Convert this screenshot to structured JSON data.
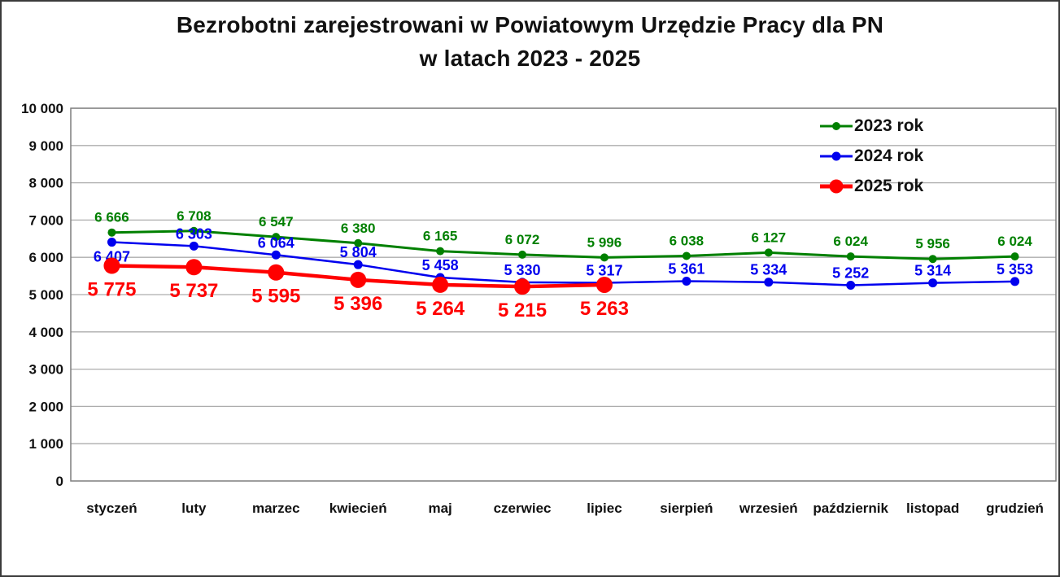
{
  "title": {
    "line1": "Bezrobotni zarejestrowani w Powiatowym Urzędzie Pracy dla PN",
    "line2": "w latach 2023 - 2025"
  },
  "legend": [
    {
      "label": "2023 rok",
      "color": "#008000",
      "line_width": 3,
      "dot_size": 10
    },
    {
      "label": "2024 rok",
      "color": "#0000EE",
      "line_width": 3,
      "dot_size": 11
    },
    {
      "label": "2025 rok",
      "color": "#FF0000",
      "line_width": 5,
      "dot_size": 17
    }
  ],
  "chart_data": {
    "type": "line",
    "title": "Bezrobotni zarejestrowani w Powiatowym Urzędzie Pracy dla PN w latach 2023 - 2025",
    "categories": [
      "styczeń",
      "luty",
      "marzec",
      "kwiecień",
      "maj",
      "czerwiec",
      "lipiec",
      "sierpień",
      "wrzesień",
      "październik",
      "listopad",
      "grudzień"
    ],
    "series": [
      {
        "name": "2023 rok",
        "color": "#008000",
        "line_width": 3,
        "marker_radius": 5,
        "label_font_size": 17,
        "label_dy": -13,
        "label_dy_overrides": {},
        "values": [
          6666,
          6708,
          6547,
          6380,
          6165,
          6072,
          5996,
          6038,
          6127,
          6024,
          5956,
          6024
        ]
      },
      {
        "name": "2024 rok",
        "color": "#0000EE",
        "line_width": 2.5,
        "marker_radius": 5.5,
        "label_font_size": 18,
        "label_dy": -9,
        "label_dy_overrides": {
          "0": 24
        },
        "values": [
          6407,
          6303,
          6064,
          5804,
          5458,
          5330,
          5317,
          5361,
          5334,
          5252,
          5314,
          5353
        ]
      },
      {
        "name": "2025 rok",
        "color": "#FF0000",
        "line_width": 4.5,
        "marker_radius": 10,
        "label_font_size": 24,
        "label_dy": 37,
        "label_dy_overrides": {},
        "values": [
          5775,
          5737,
          5595,
          5396,
          5264,
          5215,
          5263
        ]
      }
    ],
    "ylim": [
      0,
      10000
    ],
    "ytick_step": 1000,
    "grid": true,
    "legend_position": "top-right",
    "colors": {
      "gridline": "#ADADAD",
      "plot_border": "#7F7F7F",
      "tick_text": "#111111"
    }
  }
}
